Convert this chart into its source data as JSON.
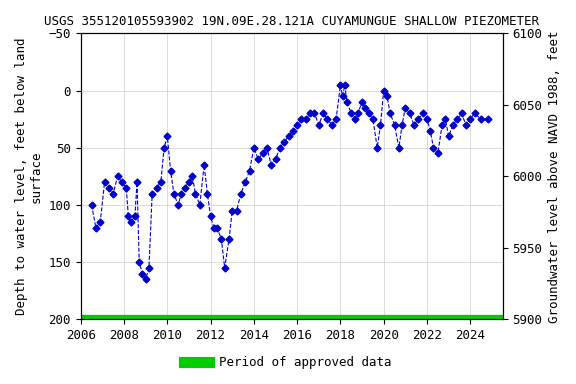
{
  "title": "USGS 355120105593902 19N.09E.28.121A CUYAMUNGUE SHALLOW PIEZOMETER",
  "ylabel_left": "Depth to water level, feet below land\nsurface",
  "ylabel_right": "Groundwater level above NAVD 1988, feet",
  "xlabel": "",
  "ylim_left": [
    200,
    -50
  ],
  "ylim_right": [
    5900,
    6100
  ],
  "yticks_left": [
    200,
    150,
    100,
    50,
    0,
    -50
  ],
  "yticks_right": [
    5900,
    5950,
    6000,
    6050,
    6100
  ],
  "xlim": [
    2006,
    2025.5
  ],
  "xticks": [
    2006,
    2008,
    2010,
    2012,
    2014,
    2016,
    2018,
    2020,
    2022,
    2024
  ],
  "line_color": "#0000cc",
  "marker_color": "#0000cc",
  "green_bar_color": "#00cc00",
  "legend_label": "Period of approved data",
  "background_color": "#ffffff",
  "grid_color": "#cccccc",
  "title_fontsize": 9,
  "axis_fontsize": 9,
  "tick_fontsize": 9,
  "data_x": [
    2006.5,
    2006.7,
    2006.9,
    2007.1,
    2007.3,
    2007.5,
    2007.7,
    2007.9,
    2008.1,
    2008.2,
    2008.3,
    2008.5,
    2008.6,
    2008.7,
    2008.85,
    2009.0,
    2009.15,
    2009.3,
    2009.5,
    2009.7,
    2009.85,
    2010.0,
    2010.15,
    2010.3,
    2010.5,
    2010.65,
    2010.8,
    2011.0,
    2011.15,
    2011.3,
    2011.5,
    2011.7,
    2011.85,
    2012.0,
    2012.15,
    2012.3,
    2012.5,
    2012.65,
    2012.85,
    2013.0,
    2013.2,
    2013.4,
    2013.6,
    2013.8,
    2014.0,
    2014.2,
    2014.4,
    2014.6,
    2014.8,
    2015.0,
    2015.2,
    2015.4,
    2015.6,
    2015.8,
    2016.0,
    2016.2,
    2016.4,
    2016.6,
    2016.8,
    2017.0,
    2017.2,
    2017.4,
    2017.6,
    2017.8,
    2018.0,
    2018.1,
    2018.2,
    2018.3,
    2018.5,
    2018.65,
    2018.8,
    2019.0,
    2019.15,
    2019.3,
    2019.5,
    2019.7,
    2019.85,
    2020.0,
    2020.15,
    2020.3,
    2020.5,
    2020.7,
    2020.85,
    2021.0,
    2021.2,
    2021.4,
    2021.6,
    2021.8,
    2022.0,
    2022.15,
    2022.3,
    2022.5,
    2022.7,
    2022.85,
    2023.0,
    2023.2,
    2023.4,
    2023.6,
    2023.8,
    2024.0,
    2024.2,
    2024.5,
    2024.8
  ],
  "data_y": [
    100,
    120,
    115,
    80,
    85,
    90,
    75,
    80,
    85,
    110,
    115,
    110,
    80,
    150,
    160,
    165,
    155,
    90,
    85,
    80,
    50,
    40,
    70,
    90,
    100,
    90,
    85,
    80,
    75,
    90,
    100,
    65,
    90,
    110,
    120,
    120,
    130,
    155,
    130,
    105,
    105,
    90,
    80,
    70,
    50,
    60,
    55,
    50,
    65,
    60,
    50,
    45,
    40,
    35,
    30,
    25,
    25,
    20,
    20,
    30,
    20,
    25,
    30,
    25,
    -5,
    5,
    -5,
    10,
    20,
    25,
    20,
    10,
    15,
    20,
    25,
    50,
    30,
    0,
    5,
    20,
    30,
    50,
    30,
    15,
    20,
    30,
    25,
    20,
    25,
    35,
    50,
    55,
    30,
    25,
    40,
    30,
    25,
    20,
    30,
    25,
    20,
    25,
    25
  ]
}
